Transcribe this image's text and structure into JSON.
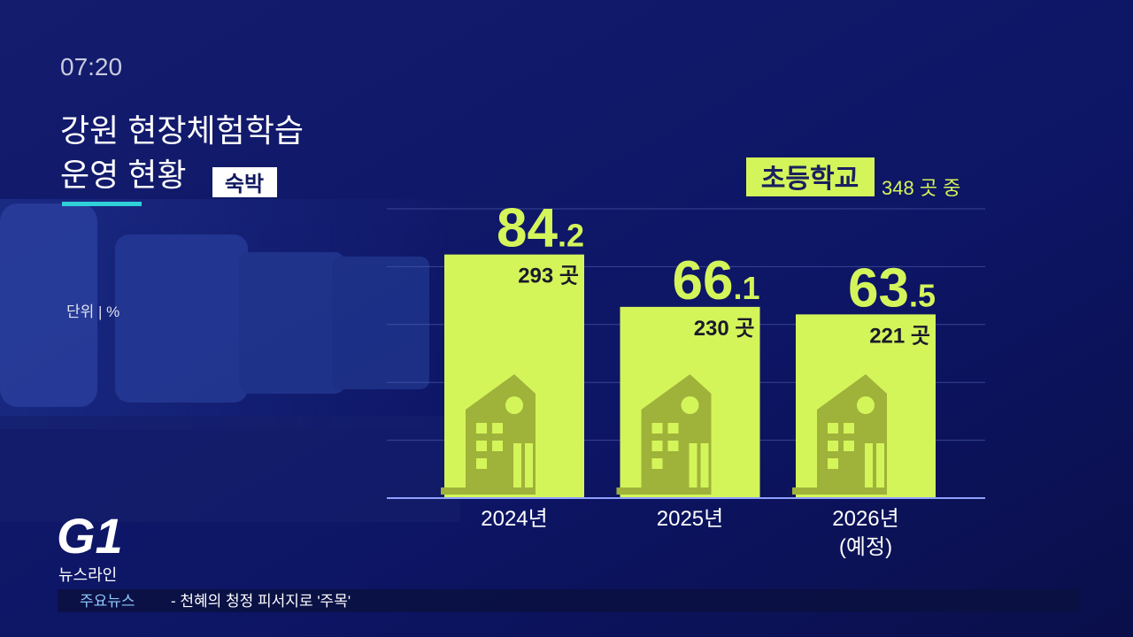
{
  "clock": "07:20",
  "chart_data": {
    "type": "bar",
    "title": [
      "강원 현장체험학습",
      "운영 현황"
    ],
    "tag": "숙박",
    "unit_label": "단위 | %",
    "legend_badge": "초등학교",
    "subtitle": "348 곳 중",
    "categories": [
      "2024년",
      "2025년",
      "2026년"
    ],
    "category_notes": [
      null,
      null,
      "(예정)"
    ],
    "values": [
      84.2,
      66.1,
      63.5
    ],
    "count_labels": [
      "293 곳",
      "230 곳",
      "221 곳"
    ],
    "color": "#d4f55a",
    "ylim": [
      0,
      100
    ],
    "yticks": [
      0,
      20,
      40,
      60,
      80,
      100
    ],
    "grid": true
  },
  "logo": {
    "mark": "G1",
    "name": "뉴스라인"
  },
  "ticker": {
    "label": "주요뉴스",
    "text": "- 천혜의 청정 피서지로 '주목'"
  }
}
